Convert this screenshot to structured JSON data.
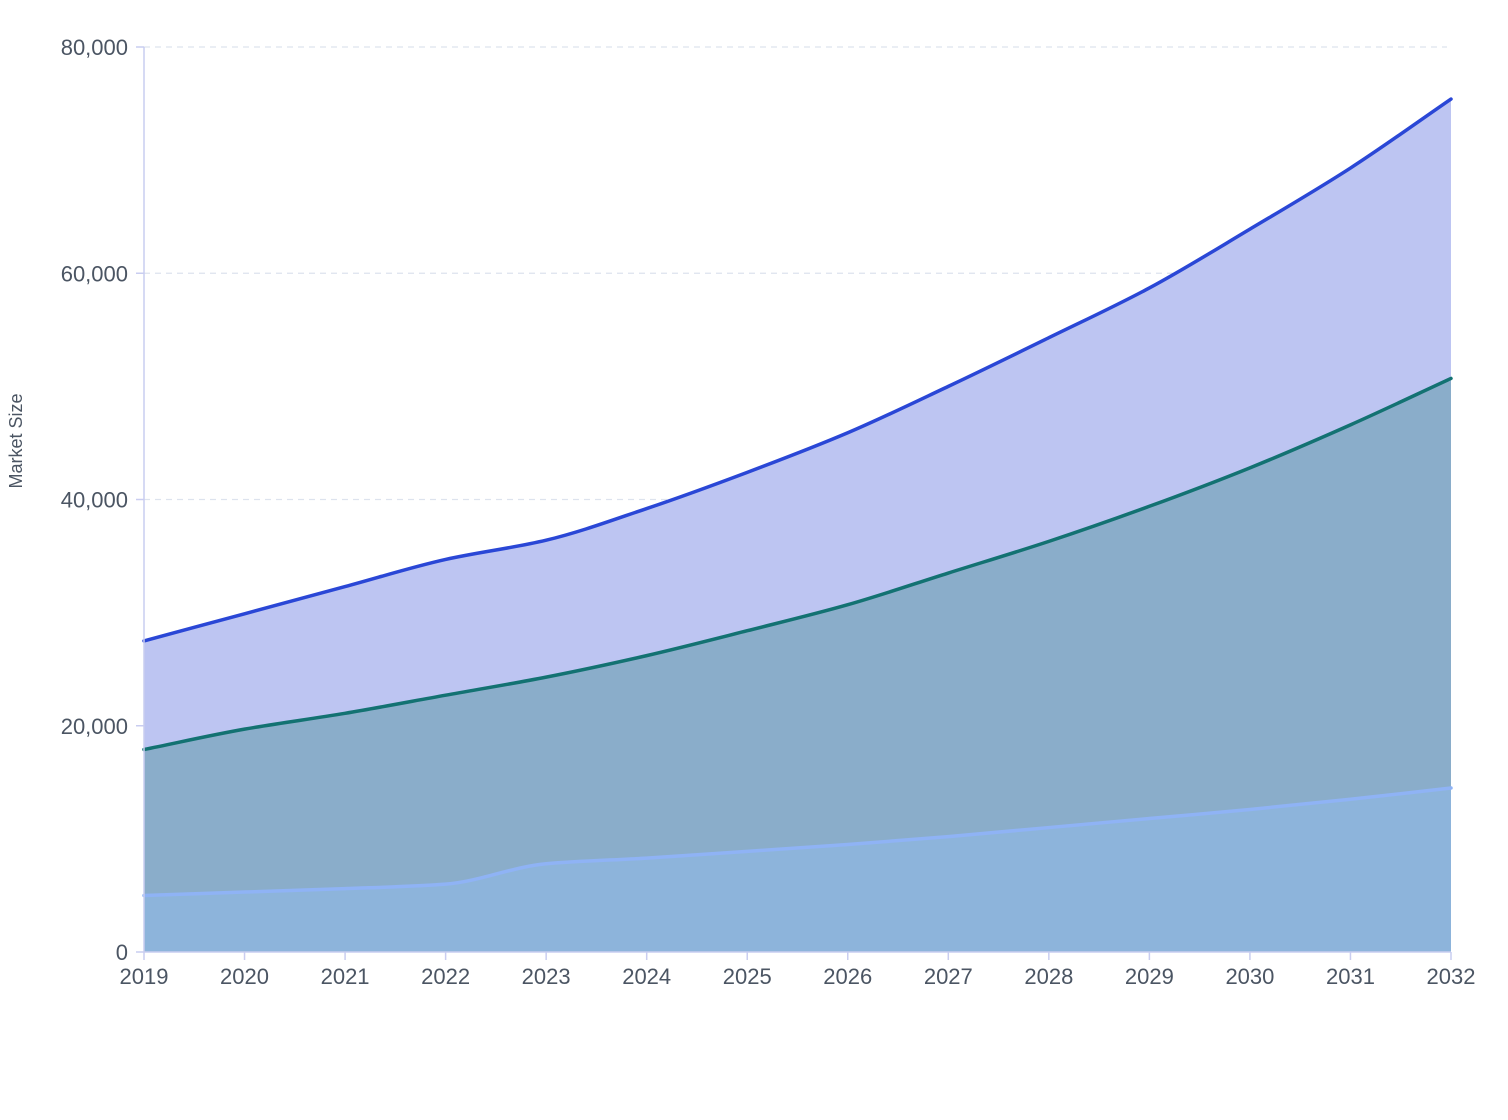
{
  "chart_data": {
    "type": "area",
    "stacked": true,
    "smooth": true,
    "title": "",
    "xlabel": "",
    "ylabel": "Market Size",
    "x": [
      "2019",
      "2020",
      "2021",
      "2022",
      "2023",
      "2024",
      "2025",
      "2026",
      "2027",
      "2028",
      "2029",
      "2030",
      "2031",
      "2032"
    ],
    "ylim": [
      0,
      80000
    ],
    "yticks": [
      0,
      20000,
      40000,
      60000,
      80000
    ],
    "ytick_labels": [
      "0",
      "20,000",
      "40,000",
      "60,000",
      "80,000"
    ],
    "grid": true,
    "legend": "none",
    "series": [
      {
        "values": [
          5000,
          5300,
          5600,
          6000,
          7800,
          8300,
          8900,
          9500,
          10200,
          11000,
          11800,
          12600,
          13500,
          14500
        ],
        "line_color": "#8fb3f5",
        "fill_color": "#8db4db"
      },
      {
        "values": [
          12900,
          14400,
          15500,
          16700,
          16500,
          17900,
          19500,
          21200,
          23300,
          25300,
          27600,
          30200,
          33100,
          36200
        ],
        "line_color": "#137272",
        "fill_color": "#8aadca"
      },
      {
        "values": [
          9600,
          10200,
          11200,
          12000,
          12100,
          13000,
          14000,
          15200,
          16500,
          18000,
          19300,
          21100,
          22700,
          24700
        ],
        "line_color": "#2a47d6",
        "fill_color": "#bdc5f2"
      }
    ]
  }
}
